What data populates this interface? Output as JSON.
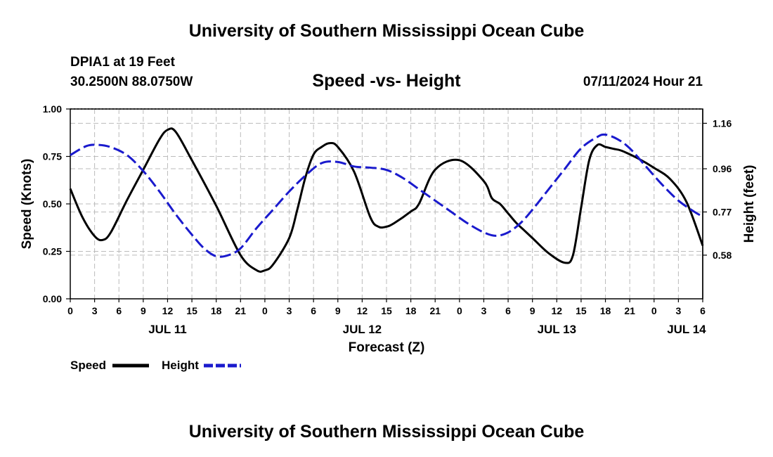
{
  "header": {
    "title": "University of Southern Mississippi Ocean Cube",
    "station": "DPIA1 at 19 Feet",
    "coords": "30.2500N  88.0750W",
    "chart_title": "Speed -vs- Height",
    "datetime": "07/11/2024 Hour 21"
  },
  "footer": {
    "title": "University of Southern Mississippi Ocean Cube"
  },
  "colors": {
    "speed": "#000000",
    "height": "#1a1acd",
    "grid": "#bbbbbb"
  },
  "chart_data": {
    "type": "line",
    "title": "Speed -vs- Height",
    "xlabel": "Forecast (Z)",
    "ylabel_left": "Speed (Knots)",
    "ylabel_right": "Height (feet)",
    "x_unit": "hours from Jul 11 00Z",
    "xlim": [
      0,
      78
    ],
    "ylim_left": [
      0,
      1.0
    ],
    "ylim_right": [
      0.388,
      1.223
    ],
    "x_ticks": [
      0,
      3,
      6,
      9,
      12,
      15,
      18,
      21,
      24,
      27,
      30,
      33,
      36,
      39,
      42,
      45,
      48,
      51,
      54,
      57,
      60,
      63,
      66,
      69,
      72,
      75,
      78
    ],
    "x_tick_labels": [
      "0",
      "3",
      "6",
      "9",
      "12",
      "15",
      "18",
      "21",
      "0",
      "3",
      "6",
      "9",
      "12",
      "15",
      "18",
      "21",
      "0",
      "3",
      "6",
      "9",
      "12",
      "15",
      "18",
      "21",
      "0",
      "3",
      "6"
    ],
    "day_labels": [
      {
        "x": 12,
        "label": "JUL 11"
      },
      {
        "x": 36,
        "label": "JUL 12"
      },
      {
        "x": 60,
        "label": "JUL 13"
      },
      {
        "x": 76,
        "label": "JUL 14"
      }
    ],
    "left_ticks": [
      {
        "value": 0.0,
        "label": "0.00"
      },
      {
        "value": 0.25,
        "label": "0.25"
      },
      {
        "value": 0.5,
        "label": "0.50"
      },
      {
        "value": 0.75,
        "label": "0.75"
      },
      {
        "value": 1.0,
        "label": "1.00"
      }
    ],
    "right_ticks": [
      {
        "value": 0.58,
        "label": "0.58"
      },
      {
        "value": 0.77,
        "label": "0.77"
      },
      {
        "value": 0.96,
        "label": "0.96"
      },
      {
        "value": 1.16,
        "label": "1.16"
      }
    ],
    "legend": {
      "position": "bottom-left",
      "entries": [
        "Speed",
        "Height"
      ]
    },
    "series": [
      {
        "name": "Speed",
        "axis": "left",
        "style": "solid",
        "x": [
          0,
          1.5,
          3,
          4,
          5,
          7,
          9,
          11,
          12,
          13,
          15,
          18,
          21,
          23,
          24,
          25,
          27,
          28,
          29,
          30,
          31,
          32,
          33,
          35,
          37,
          38,
          39,
          40,
          42,
          43,
          45,
          48,
          51,
          52,
          53,
          54,
          55,
          56,
          57,
          59,
          61,
          62,
          63,
          64,
          65,
          66,
          67,
          68,
          70,
          72,
          74,
          76,
          78
        ],
        "values": [
          0.58,
          0.43,
          0.33,
          0.31,
          0.35,
          0.52,
          0.68,
          0.84,
          0.89,
          0.88,
          0.73,
          0.49,
          0.23,
          0.15,
          0.15,
          0.18,
          0.32,
          0.47,
          0.64,
          0.76,
          0.8,
          0.82,
          0.8,
          0.67,
          0.43,
          0.38,
          0.38,
          0.4,
          0.46,
          0.5,
          0.68,
          0.73,
          0.62,
          0.53,
          0.5,
          0.45,
          0.4,
          0.36,
          0.32,
          0.24,
          0.19,
          0.23,
          0.48,
          0.73,
          0.81,
          0.8,
          0.79,
          0.78,
          0.74,
          0.69,
          0.63,
          0.51,
          0.28
        ]
      },
      {
        "name": "Height",
        "axis": "right",
        "style": "dashed",
        "x": [
          0,
          2,
          3.5,
          5,
          7,
          9,
          11,
          13,
          15,
          16.5,
          18,
          19.5,
          21,
          23,
          25,
          27,
          29,
          31,
          33,
          35,
          37,
          39,
          41,
          43,
          45,
          47,
          49,
          51,
          52.5,
          54,
          55.5,
          57,
          59,
          61,
          63,
          65,
          66,
          67.5,
          69,
          71,
          73,
          75,
          77,
          78
        ],
        "values": [
          1.02,
          1.06,
          1.065,
          1.055,
          1.02,
          0.95,
          0.86,
          0.76,
          0.67,
          0.61,
          0.575,
          0.58,
          0.61,
          0.7,
          0.78,
          0.86,
          0.93,
          0.985,
          0.99,
          0.97,
          0.965,
          0.955,
          0.92,
          0.87,
          0.82,
          0.77,
          0.72,
          0.68,
          0.665,
          0.68,
          0.72,
          0.78,
          0.87,
          0.96,
          1.05,
          1.1,
          1.11,
          1.09,
          1.05,
          0.97,
          0.89,
          0.82,
          0.77,
          0.75
        ]
      }
    ]
  }
}
